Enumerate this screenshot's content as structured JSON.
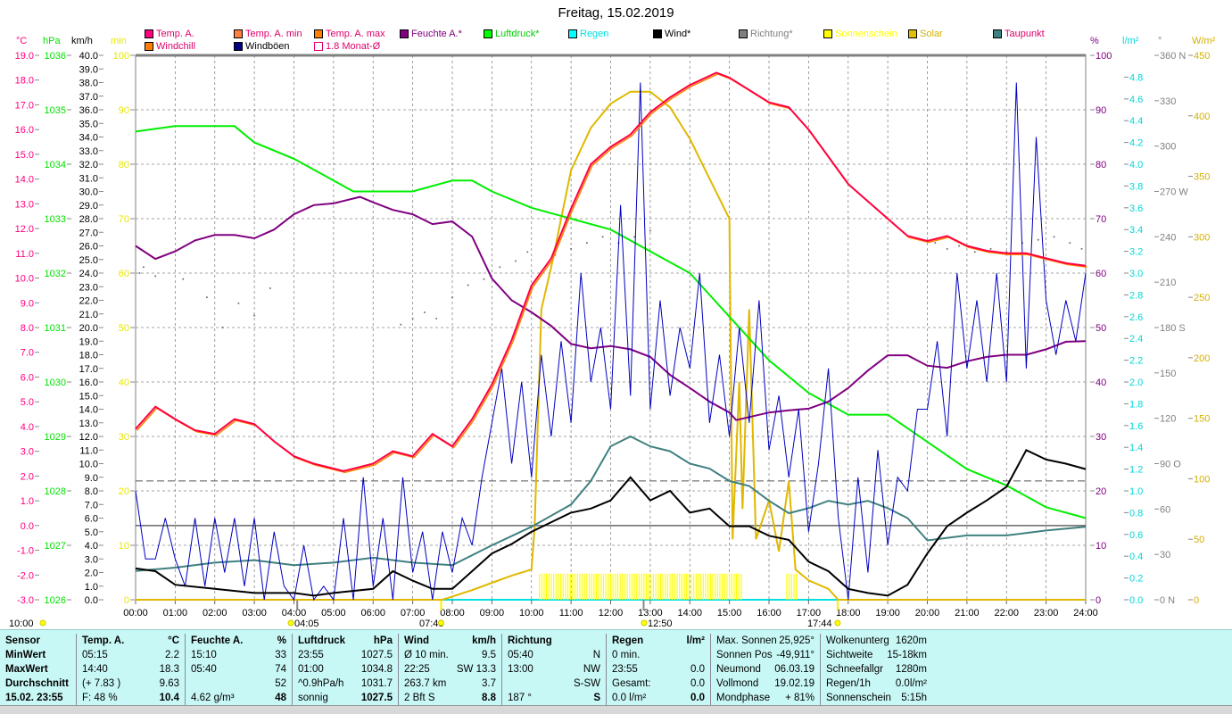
{
  "title": "Freitag, 15.02.2019",
  "legend": [
    {
      "label": "Temp. A.",
      "color": "#ff0080",
      "text": "#e0006a"
    },
    {
      "label": "Temp. A. min",
      "color": "#ff8040",
      "text": "#e0006a"
    },
    {
      "label": "Temp. A. max",
      "color": "#ff8000",
      "text": "#e0006a"
    },
    {
      "label": "Feuchte A.*",
      "color": "#800080",
      "text": "#800080"
    },
    {
      "label": "Luftdruck*",
      "color": "#00ff00",
      "text": "#00d000"
    },
    {
      "label": "Regen",
      "color": "#00ffff",
      "text": "#00e0e0"
    },
    {
      "label": "Wind*",
      "color": "#000000",
      "text": "#000"
    },
    {
      "label": "Richtung*",
      "color": "#808080",
      "text": "#808080"
    },
    {
      "label": "Sonnenschein",
      "color": "#ffff00",
      "text": "#ffff00"
    },
    {
      "label": "Solar",
      "color": "#e0c000",
      "text": "#d4b000"
    },
    {
      "label": "Taupunkt",
      "color": "#408080",
      "text": "#e0006a"
    },
    {
      "label": "Windchill",
      "color": "#ff8000",
      "text": "#e0006a"
    },
    {
      "label": "Windböen",
      "color": "#000080",
      "text": "#000"
    },
    {
      "label": "1.8 Monat-Ø",
      "color": "#ffffff",
      "text": "#e0006a"
    }
  ],
  "axes_units": {
    "temp": "°C",
    "pressure": "hPa",
    "wind": "km/h",
    "minutes": "min",
    "humidity": "%",
    "rain": "l/m²",
    "direction": "°",
    "solar": "W/m²"
  },
  "chart_data": {
    "type": "line",
    "title": "Freitag, 15.02.2019",
    "x_ticks": [
      "00:00",
      "01:00",
      "02:00",
      "03:00",
      "04:00",
      "05:00",
      "06:00",
      "07:00",
      "08:00",
      "09:00",
      "10:00",
      "11:00",
      "12:00",
      "13:00",
      "14:00",
      "15:00",
      "16:00",
      "17:00",
      "18:00",
      "19:00",
      "20:00",
      "21:00",
      "22:00",
      "23:00",
      "24:00"
    ],
    "xlim": [
      0,
      24
    ],
    "axes": {
      "temp": {
        "range": [
          -3,
          19
        ],
        "step": 1,
        "color": "#ff0080"
      },
      "pressure": {
        "range": [
          1026,
          1036
        ],
        "step": 1,
        "color": "#00e000"
      },
      "wind": {
        "range": [
          0,
          40
        ],
        "step": 1,
        "color": "#000000"
      },
      "minutes": {
        "range": [
          0,
          100
        ],
        "step": 10,
        "color": "#e8e800"
      },
      "humidity": {
        "range": [
          0,
          100
        ],
        "step": 10,
        "color": "#800080"
      },
      "rain": {
        "range": [
          0,
          5
        ],
        "step": 0.2,
        "max_label": 4.8,
        "color": "#00d8d8"
      },
      "direction": {
        "range": [
          0,
          360
        ],
        "step": 30,
        "labels": {
          "360": "N",
          "270": "W",
          "180": "S",
          "90": "O",
          "0": "N"
        },
        "color": "#808080"
      },
      "solar": {
        "range": [
          0,
          450
        ],
        "step": 50,
        "color": "#d4b000"
      }
    },
    "month_avg_temp": 1.8,
    "zero_temp_line": 0,
    "series": [
      {
        "name": "Temp. A.",
        "axis": "temp",
        "color": "#ff0040",
        "x": [
          0,
          0.5,
          1,
          1.5,
          2,
          2.5,
          3,
          3.5,
          4,
          4.5,
          5,
          5.25,
          6,
          6.5,
          7,
          7.5,
          8,
          8.5,
          9,
          9.5,
          10,
          10.5,
          11,
          11.5,
          12,
          12.5,
          13,
          13.5,
          14,
          14.67,
          15,
          15.5,
          16,
          16.5,
          17,
          17.5,
          18,
          18.5,
          19,
          19.5,
          20,
          20.5,
          21,
          21.5,
          22,
          22.5,
          23,
          23.5,
          24
        ],
        "y": [
          3.9,
          4.8,
          4.3,
          3.85,
          3.7,
          4.3,
          4.1,
          3.4,
          2.8,
          2.5,
          2.3,
          2.2,
          2.5,
          3.0,
          2.8,
          3.7,
          3.2,
          4.3,
          5.7,
          7.5,
          9.7,
          10.8,
          12.8,
          14.6,
          15.3,
          15.8,
          16.7,
          17.3,
          17.8,
          18.3,
          18.1,
          17.6,
          17.1,
          16.9,
          16.0,
          14.9,
          13.8,
          13.1,
          12.4,
          11.7,
          11.5,
          11.7,
          11.3,
          11.1,
          11.0,
          11.0,
          10.8,
          10.6,
          10.5
        ]
      },
      {
        "name": "Taupunkt",
        "axis": "temp",
        "color": "#408080",
        "x": [
          0,
          1,
          2,
          3,
          4,
          5,
          6,
          7,
          8,
          9,
          10,
          11,
          11.5,
          12,
          12.5,
          13,
          13.5,
          14,
          14.5,
          15,
          15.5,
          16,
          16.5,
          17,
          17.5,
          18,
          18.5,
          19,
          19.5,
          20,
          21,
          22,
          23,
          24
        ],
        "y": [
          -1.84,
          -1.7,
          -1.5,
          -1.4,
          -1.6,
          -1.5,
          -1.3,
          -1.5,
          -1.6,
          -0.8,
          -0.05,
          0.85,
          1.8,
          3.2,
          3.6,
          3.2,
          3.0,
          2.5,
          2.3,
          1.8,
          1.6,
          1.0,
          0.5,
          0.7,
          1.0,
          0.85,
          1.0,
          0.7,
          0.3,
          -0.6,
          -0.4,
          -0.4,
          -0.2,
          -0.05
        ]
      },
      {
        "name": "Feuchte A.",
        "axis": "humidity",
        "color": "#800080",
        "x": [
          0,
          0.5,
          1,
          1.5,
          2,
          2.5,
          3,
          3.5,
          4,
          4.5,
          5,
          5.67,
          6,
          6.5,
          7,
          7.5,
          8,
          8.5,
          9,
          9.5,
          10,
          10.5,
          11,
          11.5,
          12,
          12.5,
          13,
          13.5,
          14,
          14.5,
          15,
          15.17,
          16,
          16.5,
          17,
          17.5,
          18,
          18.5,
          19,
          19.5,
          20,
          20.5,
          21,
          21.5,
          22,
          22.5,
          23,
          23.5,
          24
        ],
        "y": [
          65,
          62.6,
          64,
          66,
          67,
          67,
          66.4,
          68,
          70.8,
          72.5,
          72.8,
          74,
          73,
          71.6,
          70.8,
          69,
          69.5,
          66.7,
          59,
          55,
          52.8,
          50.3,
          47,
          46.2,
          46.6,
          46,
          44.6,
          41.3,
          38.9,
          36.4,
          34.4,
          33,
          34.4,
          34.8,
          35.1,
          36.4,
          38.9,
          42.1,
          44.9,
          44.9,
          43,
          42.6,
          43.8,
          44.6,
          45,
          45,
          46,
          47.4,
          47.5
        ]
      },
      {
        "name": "Luftdruck",
        "axis": "pressure",
        "color": "#00ee00",
        "x": [
          0,
          1,
          2,
          2.5,
          3,
          4,
          5,
          5.5,
          6,
          7,
          8,
          8.5,
          9,
          10,
          11,
          12,
          13,
          14,
          15,
          16,
          17,
          18,
          19,
          20,
          21,
          22,
          23,
          24
        ],
        "y": [
          1034.6,
          1034.7,
          1034.7,
          1034.7,
          1034.4,
          1034.1,
          1033.7,
          1033.5,
          1033.5,
          1033.5,
          1033.7,
          1033.7,
          1033.5,
          1033.2,
          1033.0,
          1032.8,
          1032.4,
          1032.0,
          1031.2,
          1030.4,
          1029.8,
          1029.4,
          1029.4,
          1028.9,
          1028.4,
          1028.1,
          1027.7,
          1027.5
        ]
      },
      {
        "name": "Windböen",
        "axis": "wind",
        "color": "#0000c0",
        "x_step": 0.25,
        "y": [
          8,
          3,
          3,
          6,
          3,
          1,
          6,
          1,
          6,
          2,
          6,
          1,
          6,
          0,
          5,
          1,
          0,
          4,
          0,
          1,
          0,
          6,
          0,
          9,
          1,
          6,
          0,
          9,
          2,
          5,
          0,
          5,
          2,
          6,
          4,
          9,
          13,
          17,
          10,
          16,
          9,
          18,
          12,
          19,
          13,
          24,
          16,
          20,
          14,
          29,
          15,
          38,
          14,
          22,
          15,
          20,
          17,
          24,
          13,
          18,
          12,
          20,
          13,
          22,
          11,
          15,
          9,
          14,
          5,
          10,
          17,
          6,
          0,
          9,
          2,
          11,
          4,
          9,
          8,
          14,
          14,
          19,
          12,
          24,
          17,
          22,
          16,
          24,
          16,
          38,
          17,
          34,
          22,
          18,
          22,
          19,
          24
        ]
      },
      {
        "name": "Wind",
        "axis": "wind",
        "color": "#000000",
        "x": [
          0,
          0.5,
          1,
          2,
          3,
          4,
          4.5,
          5,
          6,
          6.5,
          7,
          7.5,
          8,
          8.5,
          9,
          9.5,
          10,
          10.5,
          11,
          11.5,
          12,
          12.5,
          13,
          13.5,
          14,
          14.5,
          15,
          15.5,
          16,
          16.5,
          17,
          17.5,
          18,
          18.5,
          19,
          19.5,
          20,
          20.5,
          21,
          21.5,
          22,
          22.5,
          23,
          23.5,
          24
        ],
        "y": [
          2.3,
          2.1,
          1.1,
          0.8,
          0.5,
          0.5,
          0.3,
          0.5,
          0.8,
          2.1,
          1.4,
          0.8,
          0.8,
          2.1,
          3.4,
          4.1,
          5,
          5.7,
          6.4,
          6.7,
          7.3,
          9,
          7.3,
          8,
          6.4,
          6.7,
          5.4,
          5.4,
          4.7,
          4.4,
          2.8,
          2.1,
          0.8,
          0.5,
          0.3,
          1.1,
          3.4,
          5.4,
          6.4,
          7.3,
          8.3,
          11,
          10.3,
          10,
          9.6
        ]
      },
      {
        "name": "Solar",
        "axis": "solar",
        "color": "#e0b800",
        "x": [
          0,
          7.75,
          8.5,
          9,
          9.5,
          10,
          10.08,
          10.25,
          10.5,
          10.75,
          11,
          11.5,
          12,
          12.5,
          13,
          13.5,
          14,
          14.5,
          15,
          15.08,
          15.25,
          15.33,
          15.5,
          15.67,
          16,
          16.25,
          16.5,
          16.67,
          17,
          17.5,
          17.75,
          24
        ],
        "y": [
          0,
          0,
          8,
          14,
          20,
          25,
          60,
          240,
          275,
          315,
          355,
          390,
          410,
          420,
          420,
          407,
          381,
          348,
          315,
          50,
          180,
          75,
          240,
          50,
          82,
          40,
          98,
          25,
          16,
          9,
          0,
          0
        ]
      }
    ],
    "sunshine": {
      "axis": "minutes",
      "intervals": [
        [
          10.2,
          15.35
        ],
        [
          16.45,
          16.7
        ]
      ],
      "value": 4.8,
      "color": "#ffff00"
    },
    "direction_points": {
      "axis": "direction",
      "color": "#707070",
      "x": [
        0.1,
        0.2,
        0.5,
        1.2,
        1.8,
        2.2,
        2.6,
        3.0,
        3.4,
        6.7,
        7.0,
        7.3,
        7.6,
        8.0,
        8.4,
        8.8,
        9.2,
        9.6,
        9.9,
        10.6,
        11.0,
        11.4,
        11.8,
        12.2,
        12.6,
        13.0,
        20.2,
        20.5,
        20.8,
        21.2,
        21.6,
        22.0,
        22.4,
        22.8,
        23.2,
        23.6,
        23.9
      ],
      "y": [
        216,
        220,
        214,
        212,
        200,
        180,
        196,
        188,
        206,
        182,
        186,
        190,
        186,
        200,
        208,
        212,
        220,
        224,
        230,
        228,
        232,
        236,
        240,
        236,
        240,
        244,
        236,
        232,
        234,
        230,
        232,
        230,
        236,
        238,
        240,
        236,
        232
      ]
    },
    "sun_events": [
      {
        "label": "10:00",
        "marker": "sun"
      },
      {
        "label": "04:05",
        "marker": "moon"
      },
      {
        "label": "07:43",
        "marker": "sunrise"
      },
      {
        "label": "12:50",
        "marker": "moon"
      },
      {
        "label": "17:44",
        "marker": "sunset"
      }
    ]
  },
  "table": {
    "sensor": [
      "Sensor",
      "MinWert",
      "MaxWert",
      "Durchschnitt",
      "15.02. 23:55"
    ],
    "columns": [
      {
        "head": [
          "Temp. A.",
          "°C"
        ],
        "rows": [
          [
            "05:15",
            "2.2"
          ],
          [
            "14:40",
            "18.3"
          ],
          [
            "(+ 7.83 )",
            "9.63"
          ],
          [
            "F: 48 %",
            "10.4"
          ]
        ]
      },
      {
        "head": [
          "Feuchte A.",
          "%"
        ],
        "rows": [
          [
            "15:10",
            "33"
          ],
          [
            "05:40",
            "74"
          ],
          [
            "",
            "52"
          ],
          [
            "4.62 g/m³",
            "48"
          ]
        ]
      },
      {
        "head": [
          "Luftdruck",
          "hPa"
        ],
        "rows": [
          [
            "23:55",
            "1027.5"
          ],
          [
            "01:00",
            "1034.8"
          ],
          [
            "^0.9hPa/h",
            "1031.7"
          ],
          [
            "sonnig",
            "1027.5"
          ]
        ]
      },
      {
        "head": [
          "Wind",
          "km/h"
        ],
        "rows": [
          [
            "Ø 10 min.",
            "9.5"
          ],
          [
            "22:25",
            "SW 13.3"
          ],
          [
            "263.7 km",
            "3.7"
          ],
          [
            "2 Bft S",
            "8.8"
          ]
        ]
      },
      {
        "head": [
          "Richtung",
          ""
        ],
        "rows": [
          [
            "05:40",
            "N"
          ],
          [
            "13:00",
            "NW"
          ],
          [
            "",
            "S-SW"
          ],
          [
            "187 °",
            "S"
          ]
        ]
      },
      {
        "head": [
          "Regen",
          "l/m²"
        ],
        "rows": [
          [
            "0 min.",
            ""
          ],
          [
            "23:55",
            "0.0"
          ],
          [
            "Gesamt:",
            "0.0"
          ],
          [
            "0.0 l/m²",
            "0.0"
          ]
        ]
      },
      {
        "head": [
          "Max. Sonnen",
          "25,925°"
        ],
        "rows": [
          [
            "Sonnen Pos",
            "-49,911°"
          ],
          [
            "Neumond",
            "06.03.19"
          ],
          [
            "Vollmond",
            "19.02.19"
          ],
          [
            "Mondphase",
            "+ 81%"
          ]
        ]
      },
      {
        "head": [
          "Wolkenunterg",
          "1620m"
        ],
        "rows": [
          [
            "Sichtweite",
            "15-18km"
          ],
          [
            "Schneefallgr",
            "1280m"
          ],
          [
            "Regen/1h",
            "0.0l/m²"
          ],
          [
            "Sonnenschein",
            "5:15h"
          ]
        ]
      }
    ]
  }
}
